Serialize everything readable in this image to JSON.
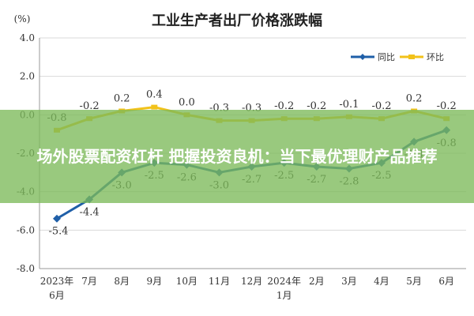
{
  "chart_data": {
    "type": "line",
    "title": "工业生产者出厂价格涨跌幅",
    "ylabel": "(%)",
    "xlabel": "",
    "categories": [
      "2023年6月",
      "7月",
      "8月",
      "9月",
      "10月",
      "11月",
      "12月",
      "2024年1月",
      "2月",
      "3月",
      "4月",
      "5月",
      "6月"
    ],
    "yticks": [
      "4.0",
      "2.0",
      "0.0",
      "-2.0",
      "-4.0",
      "-6.0",
      "-8.0"
    ],
    "ylim": [
      -8,
      4
    ],
    "grid": "horizontal",
    "legend_position": "top-right",
    "series": [
      {
        "name": "同比",
        "color": "#1f5fa8",
        "values": [
          -5.4,
          -4.4,
          -3.0,
          -2.5,
          -2.6,
          -3.0,
          -2.7,
          -2.5,
          -2.7,
          -2.8,
          -2.5,
          -1.4,
          -0.8
        ],
        "labels": [
          "-5.4",
          "-4.4",
          "-3.0",
          "-2.5",
          "-2.6",
          "-3.0",
          "-2.7",
          "-2.5",
          "-2.7",
          "-2.8",
          "-2.5",
          "-1.4",
          "-0.8"
        ]
      },
      {
        "name": "环比",
        "color": "#f2c21a",
        "values": [
          -0.8,
          -0.2,
          0.2,
          0.4,
          0.0,
          -0.3,
          -0.3,
          -0.2,
          -0.2,
          -0.1,
          -0.2,
          0.2,
          -0.2
        ],
        "labels": [
          "-0.8",
          "-0.2",
          "0.2",
          "0.4",
          "0.0",
          "-0.3",
          "-0.3",
          "-0.2",
          "-0.2",
          "-0.1",
          "-0.2",
          "0.2",
          "-0.2"
        ]
      }
    ]
  },
  "overlay": {
    "banner_text": "场外股票配资杠杆 把握投资良机：当下最优理财产品推荐"
  }
}
